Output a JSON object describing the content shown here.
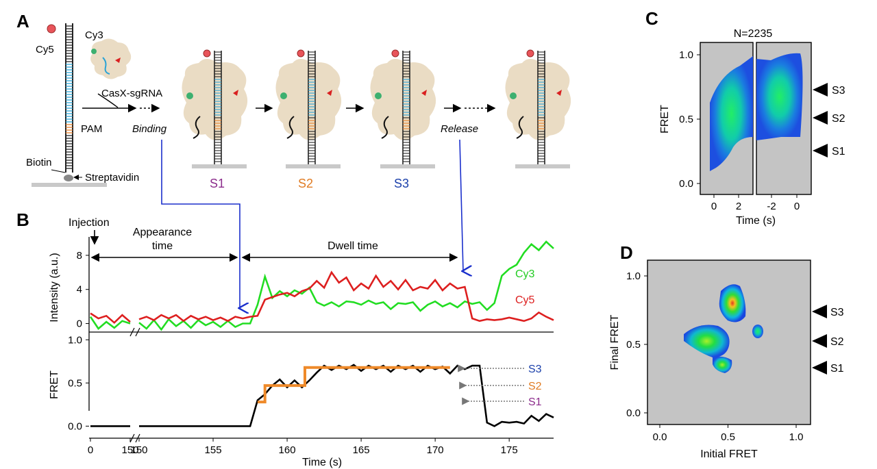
{
  "panels": {
    "A": {
      "letter": "A",
      "labels": {
        "cy5": "Cy5",
        "cy3": "Cy3",
        "casx": "CasX-sgRNA",
        "pam": "PAM",
        "binding": "Binding",
        "release": "Release",
        "biotin": "Biotin",
        "streptavidin": "Streptavidin"
      },
      "states": [
        "S1",
        "S2",
        "S3"
      ],
      "colors": {
        "protein": "#eadcc4",
        "rna": "#2aa3d6",
        "pam": "#e8802a",
        "cy5": "#e8545a",
        "cy3": "#3db070",
        "s1": "#8b2b8b",
        "s2": "#e07b22",
        "s3": "#1a3faa"
      }
    },
    "B": {
      "letter": "B",
      "annotations": {
        "injection": "Injection",
        "appearance": "Appearance\ntime",
        "dwell": "Dwell time"
      },
      "state_arrows": [
        "S3",
        "S2",
        "S1"
      ]
    },
    "C": {
      "letter": "C",
      "n_label": "N=2235",
      "state_markers": [
        "S3",
        "S2",
        "S1"
      ]
    },
    "D": {
      "letter": "D",
      "state_markers": [
        "S3",
        "S2",
        "S1"
      ]
    }
  },
  "chart_data": [
    {
      "panel": "B-top",
      "type": "line",
      "ylabel": "Intensity (a.u.)",
      "yticks": [
        0,
        4,
        8
      ],
      "ylim": [
        -1,
        10
      ],
      "xlim_break": [
        [
          0,
          2
        ],
        [
          150,
          178
        ]
      ],
      "series": [
        {
          "name": "Cy3",
          "color": "#22dd22",
          "segments": [
            {
              "x": [
                0,
                0.4,
                0.8,
                1.2,
                1.6,
                2.0
              ],
              "y": [
                0.8,
                -0.6,
                0.2,
                -0.5,
                0.3,
                0.0
              ]
            },
            {
              "x": [
                150,
                150.5,
                151,
                151.5,
                152,
                152.5,
                153,
                153.5,
                154,
                154.5,
                155,
                155.5,
                156,
                156.5,
                157,
                157.5,
                158,
                158.5,
                159,
                159.5,
                160,
                160.5,
                161,
                161.5,
                162,
                162.5,
                163,
                163.5,
                164,
                164.5,
                165,
                165.5,
                166,
                166.5,
                167,
                167.5,
                168,
                168.5,
                169,
                169.5,
                170,
                170.5,
                171,
                171.5,
                172,
                172.5,
                173,
                173.5,
                174,
                174.5,
                175,
                175.5,
                176,
                176.5,
                177,
                177.5,
                178
              ],
              "y": [
                0.1,
                -0.6,
                0.4,
                -0.7,
                0.5,
                -0.3,
                0.3,
                -0.5,
                0.4,
                -0.2,
                0.2,
                -0.4,
                0.3,
                -0.4,
                0.0,
                0.0,
                2.2,
                5.5,
                3.0,
                3.8,
                3.2,
                3.9,
                3.5,
                4.2,
                2.5,
                2.1,
                2.5,
                2.0,
                2.6,
                2.5,
                2.2,
                2.7,
                2.3,
                2.5,
                1.7,
                2.4,
                2.3,
                2.5,
                1.5,
                2.2,
                2.6,
                2.0,
                2.4,
                1.9,
                2.6,
                2.3,
                2.5,
                1.6,
                2.4,
                5.6,
                6.4,
                6.9,
                8.3,
                9.3,
                8.6,
                9.6,
                8.8
              ]
            }
          ]
        },
        {
          "name": "Cy5",
          "color": "#dd1f1f",
          "segments": [
            {
              "x": [
                0,
                0.4,
                0.8,
                1.2,
                1.6,
                2.0
              ],
              "y": [
                1.2,
                0.6,
                0.9,
                0.1,
                1.0,
                0.2
              ]
            },
            {
              "x": [
                150,
                150.5,
                151,
                151.5,
                152,
                152.5,
                153,
                153.5,
                154,
                154.5,
                155,
                155.5,
                156,
                156.5,
                157,
                157.5,
                158,
                158.5,
                159,
                159.5,
                160,
                160.5,
                161,
                161.5,
                162,
                162.5,
                163,
                163.5,
                164,
                164.5,
                165,
                165.5,
                166,
                166.5,
                167,
                167.5,
                168,
                168.5,
                169,
                169.5,
                170,
                170.5,
                171,
                171.5,
                172,
                172.5,
                173,
                173.5,
                174,
                174.5,
                175,
                175.5,
                176,
                176.5,
                177,
                177.5,
                178
              ],
              "y": [
                0.5,
                0.8,
                0.4,
                1.0,
                0.6,
                1.0,
                0.3,
                0.9,
                0.5,
                0.8,
                0.4,
                0.7,
                0.3,
                0.8,
                0.6,
                0.8,
                0.9,
                2.8,
                3.1,
                3.4,
                3.6,
                3.2,
                3.8,
                4.1,
                5.0,
                4.2,
                6.0,
                4.8,
                5.4,
                3.9,
                4.7,
                4.1,
                5.6,
                4.3,
                5.0,
                4.0,
                5.1,
                3.9,
                4.3,
                4.1,
                5.1,
                3.9,
                4.7,
                4.1,
                4.3,
                0.6,
                0.3,
                0.5,
                0.4,
                0.5,
                0.7,
                0.5,
                0.3,
                0.6,
                1.3,
                0.8,
                0.4
              ]
            }
          ]
        }
      ]
    },
    {
      "panel": "B-bottom",
      "type": "line",
      "xlabel": "Time (s)",
      "ylabel": "FRET",
      "yticks": [
        "0.0",
        "0.5",
        "1.0"
      ],
      "ylim": [
        -0.1,
        1.05
      ],
      "xticks": [
        "0",
        "150",
        "150",
        "155",
        "160",
        "165",
        "170",
        "175"
      ],
      "tick_labels_x": [
        0,
        150,
        150,
        155,
        160,
        165,
        170,
        175
      ],
      "series": [
        {
          "name": "",
          "color": "#000000",
          "segments": [
            {
              "x": [
                0,
                2
              ],
              "y": [
                0,
                0
              ]
            },
            {
              "x": [
                150,
                151,
                152,
                153,
                154,
                155,
                156,
                157,
                157.5,
                158,
                158.5,
                159,
                159.5,
                160,
                160.5,
                161,
                161.5,
                162,
                162.5,
                163,
                163.5,
                164,
                164.5,
                165,
                165.5,
                166,
                166.5,
                167,
                167.5,
                168,
                168.5,
                169,
                169.5,
                170,
                170.5,
                171,
                171.5,
                172,
                172.5,
                173,
                173.5,
                174,
                174.5,
                175,
                175.5,
                176,
                176.5,
                177,
                177.5,
                178
              ],
              "y": [
                0,
                0,
                0,
                0,
                0,
                0,
                0,
                0,
                0,
                0.3,
                0.37,
                0.47,
                0.54,
                0.45,
                0.53,
                0.45,
                0.53,
                0.62,
                0.7,
                0.65,
                0.7,
                0.66,
                0.71,
                0.64,
                0.7,
                0.66,
                0.7,
                0.63,
                0.7,
                0.66,
                0.7,
                0.63,
                0.7,
                0.66,
                0.69,
                0.61,
                0.7,
                0.66,
                0.7,
                0.7,
                0.04,
                0.0,
                0.05,
                0.04,
                0.05,
                0.03,
                0.12,
                0.06,
                0.14,
                0.1
              ]
            }
          ]
        },
        {
          "name": "",
          "color": "#ef8a2a",
          "segments": [
            {
              "x": [
                158,
                158.5,
                158.5,
                161.2,
                161.2,
                171
              ],
              "y": [
                0.28,
                0.28,
                0.47,
                0.47,
                0.68,
                0.68
              ]
            }
          ]
        }
      ]
    },
    {
      "panel": "C",
      "type": "heatmap",
      "title": "N=2235",
      "xlabel": "Time (s)",
      "ylabel": "FRET",
      "xticks_left": [
        "0",
        "2"
      ],
      "xticks_right": [
        "-2",
        "0"
      ],
      "yticks": [
        "0.0",
        "0.5",
        "1.0"
      ]
    },
    {
      "panel": "D",
      "type": "heatmap",
      "xlabel": "Initial FRET",
      "ylabel": "Final FRET",
      "xticks": [
        "0.0",
        "0.5",
        "1.0"
      ],
      "yticks": [
        "0.0",
        "0.5",
        "1.0"
      ],
      "clusters": [
        {
          "initial": 0.55,
          "final": 0.75
        },
        {
          "initial": 0.33,
          "final": 0.52
        },
        {
          "initial": 0.4,
          "final": 0.35
        },
        {
          "initial": 0.73,
          "final": 0.6
        }
      ]
    }
  ]
}
